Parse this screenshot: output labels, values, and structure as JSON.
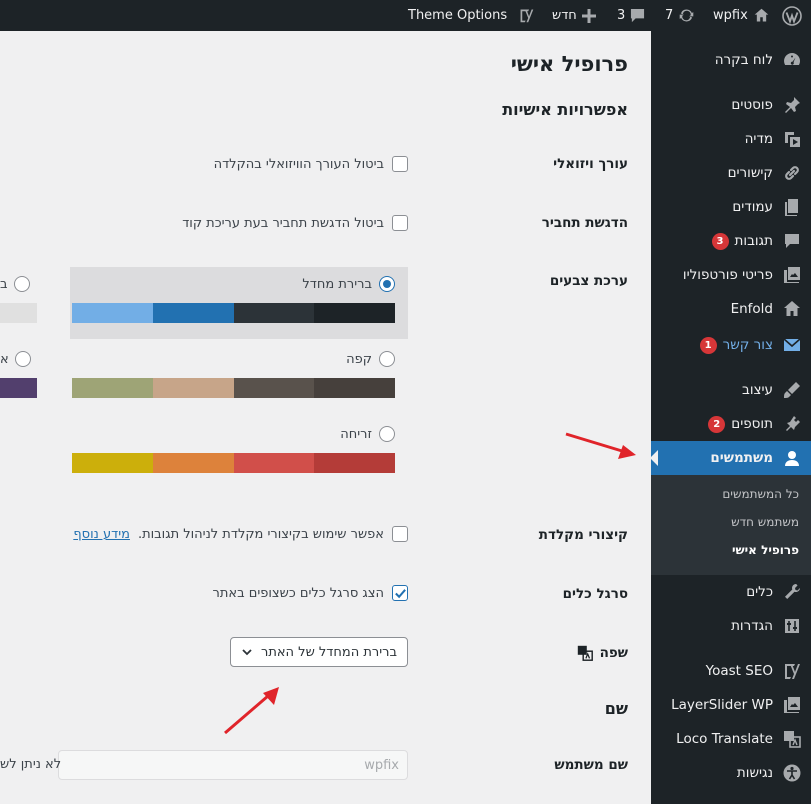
{
  "adminbar": {
    "site_name": "wpfix",
    "updates_count": "7",
    "comments_count": "3",
    "new_label": "חדש",
    "theme_options": "Theme Options"
  },
  "sidebar": {
    "items": [
      {
        "label": "לוח בקרה",
        "icon": "dashboard-icon"
      },
      {
        "label": "פוסטים",
        "icon": "pin-icon"
      },
      {
        "label": "מדיה",
        "icon": "media-icon"
      },
      {
        "label": "קישורים",
        "icon": "link-icon"
      },
      {
        "label": "עמודים",
        "icon": "pages-icon"
      },
      {
        "label": "תגובות",
        "icon": "comment-icon",
        "badge": "3"
      },
      {
        "label": "פריטי פורטפוליו",
        "icon": "portfolio-icon"
      },
      {
        "label": "Enfold",
        "icon": "home-icon"
      },
      {
        "label": "צור קשר",
        "icon": "mail-icon",
        "badge": "1"
      },
      {
        "label": "עיצוב",
        "icon": "brush-icon"
      },
      {
        "label": "תוספים",
        "icon": "plugin-icon",
        "badge": "2"
      },
      {
        "label": "משתמשים",
        "icon": "user-icon"
      },
      {
        "label": "כלים",
        "icon": "wrench-icon"
      },
      {
        "label": "הגדרות",
        "icon": "settings-icon"
      },
      {
        "label": "Yoast SEO",
        "icon": "yoast-icon"
      },
      {
        "label": "LayerSlider WP",
        "icon": "layers-icon"
      },
      {
        "label": "Loco Translate",
        "icon": "translate-icon"
      },
      {
        "label": "נגישות",
        "icon": "accessibility-icon"
      }
    ],
    "submenu": [
      "כל המשתמשים",
      "משתמש חדש",
      "פרופיל אישי"
    ]
  },
  "content": {
    "page_title": "פרופיל אישי",
    "section_title": "אפשרויות אישיות",
    "visual_editor": {
      "label": "עורך ויזואלי",
      "text": "ביטול העורך הוויזואלי בהקלדה",
      "checked": false
    },
    "syntax_highlight": {
      "label": "הדגשת תחביר",
      "text": "ביטול הדגשת תחביר בעת עריכת קוד",
      "checked": false
    },
    "color_scheme": {
      "label": "ערכת צבעים",
      "schemes": [
        {
          "name": "ברירת מחדל",
          "selected": true,
          "colors": [
            "#72aee6",
            "#2271b1",
            "#2c3338",
            "#1d2327"
          ]
        },
        {
          "name": "קפה",
          "selected": false,
          "colors": [
            "#9ea476",
            "#c7a589",
            "#59524c",
            "#46403c"
          ]
        },
        {
          "name": "זריחה",
          "selected": false,
          "colors": [
            "#ccaf0b",
            "#dd823b",
            "#d1864a",
            "#b43c38"
          ]
        }
      ],
      "cut_left_names": [
        "ב",
        "א"
      ]
    },
    "shortcuts": {
      "label": "קיצורי מקלדת",
      "text": "אפשר שימוש בקיצורי מקלדת לניהול תגובות.",
      "link": "מידע נוסף",
      "checked": false
    },
    "toolbar": {
      "label": "סרגל כלים",
      "text": "הצג סרגל כלים כשצופים באתר",
      "checked": true
    },
    "language": {
      "label": "שפה",
      "value": "ברירת המחדל של האתר"
    },
    "name_section": "שם",
    "username": {
      "label": "שם משתמש",
      "value": "wpfix",
      "note_cut": "לא ניתן לש"
    }
  },
  "colors": {
    "accent": "#2271b1",
    "annotation_arrow": "#d63638",
    "sidebar_bg": "#1d2327"
  }
}
